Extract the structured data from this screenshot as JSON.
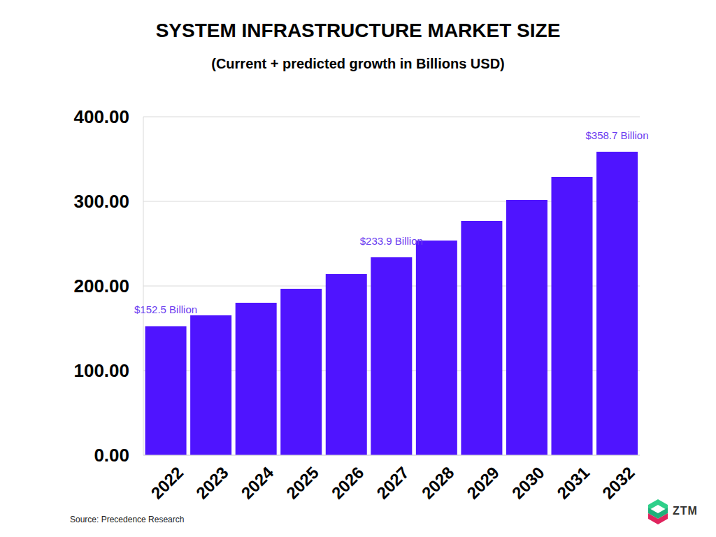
{
  "chart_data": {
    "type": "bar",
    "title": "SYSTEM INFRASTRUCTURE MARKET SIZE",
    "subtitle": "(Current + predicted growth in Billions USD)",
    "source": "Source: Precedence Research",
    "logo": "ZTM",
    "categories": [
      "2022",
      "2023",
      "2024",
      "2025",
      "2026",
      "2027",
      "2028",
      "2029",
      "2030",
      "2031",
      "2032"
    ],
    "values": [
      152.5,
      165.3,
      180.2,
      196.7,
      214.0,
      233.9,
      253.7,
      276.9,
      301.7,
      328.9,
      358.7
    ],
    "value_labels": [
      "$152.5 Billion",
      null,
      null,
      null,
      null,
      "$233.9 Billion",
      null,
      null,
      null,
      null,
      "$358.7 Billion"
    ],
    "data_labels": true,
    "color": "#4f14ff",
    "ylim": [
      0,
      400
    ],
    "yticks": [
      {
        "value": 0,
        "label": "0.00"
      },
      {
        "value": 100,
        "label": "100.00"
      },
      {
        "value": 200,
        "label": "200.00"
      },
      {
        "value": 300,
        "label": "300.00"
      },
      {
        "value": 400,
        "label": "400.00"
      }
    ],
    "grid": true
  }
}
